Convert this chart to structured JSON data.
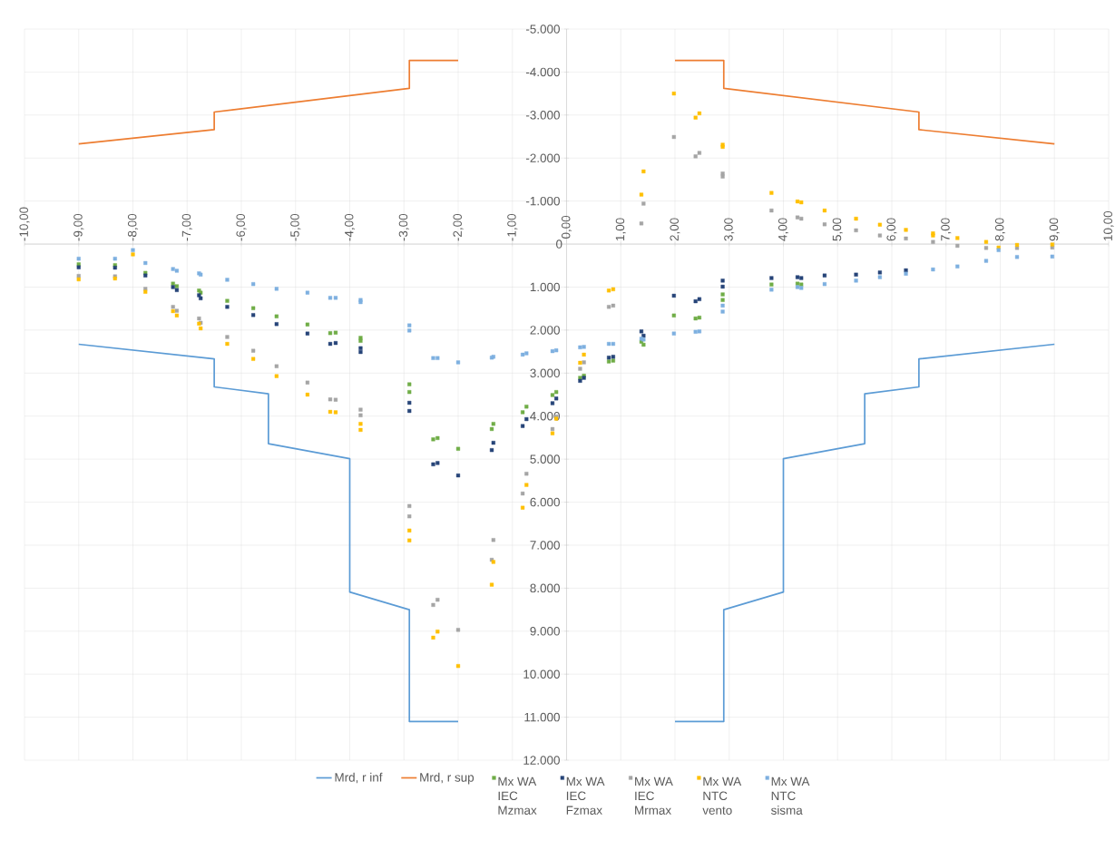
{
  "chart_data": {
    "type": "scatter",
    "marker": "square",
    "grid": true,
    "legend": "bottom",
    "xlim": [
      -10,
      10
    ],
    "ylim": [
      12000,
      -5000
    ],
    "xticks": [
      {
        "value": -10,
        "label": "-10,00"
      },
      {
        "value": -9,
        "label": "-9,00"
      },
      {
        "value": -8,
        "label": "-8,00"
      },
      {
        "value": -7,
        "label": "-7,00"
      },
      {
        "value": -6,
        "label": "-6,00"
      },
      {
        "value": -5,
        "label": "-5,00"
      },
      {
        "value": -4,
        "label": "-4,00"
      },
      {
        "value": -3,
        "label": "-3,00"
      },
      {
        "value": -2,
        "label": "-2,00"
      },
      {
        "value": -1,
        "label": "-1,00"
      },
      {
        "value": 0,
        "label": "0,00"
      },
      {
        "value": 1,
        "label": "1,00"
      },
      {
        "value": 2,
        "label": "2,00"
      },
      {
        "value": 3,
        "label": "3,00"
      },
      {
        "value": 4,
        "label": "4,00"
      },
      {
        "value": 5,
        "label": "5,00"
      },
      {
        "value": 6,
        "label": "6,00"
      },
      {
        "value": 7,
        "label": "7,00"
      },
      {
        "value": 8,
        "label": "8,00"
      },
      {
        "value": 9,
        "label": "9,00"
      },
      {
        "value": 10,
        "label": "10,00"
      }
    ],
    "yticks": [
      {
        "value": -5000,
        "label": "-5.000"
      },
      {
        "value": -4000,
        "label": "-4.000"
      },
      {
        "value": -3000,
        "label": "-3.000"
      },
      {
        "value": -2000,
        "label": "-2.000"
      },
      {
        "value": -1000,
        "label": "-1.000"
      },
      0,
      {
        "value": 1000,
        "label": "1.000"
      },
      {
        "value": 2000,
        "label": "2.000"
      },
      {
        "value": 3000,
        "label": "3.000"
      },
      {
        "value": 4000,
        "label": "4.000"
      },
      {
        "value": 5000,
        "label": "5.000"
      },
      {
        "value": 6000,
        "label": "6.000"
      },
      {
        "value": 7000,
        "label": "7.000"
      },
      {
        "value": 8000,
        "label": "8.000"
      },
      {
        "value": 9000,
        "label": "9.000"
      },
      {
        "value": 10000,
        "label": "10.000"
      },
      {
        "value": 11000,
        "label": "11.000"
      },
      {
        "value": 12000,
        "label": "12.000"
      }
    ],
    "x": [
      -9,
      -8.33,
      -8,
      -7.77,
      -7.26,
      -7.19,
      -6.78,
      -6.75,
      -6.26,
      -5.78,
      -5.35,
      -4.78,
      -4.36,
      -4.26,
      -3.8,
      -3.8,
      -2.9,
      -2.9,
      -2.46,
      -2.38,
      -2,
      -1.38,
      -1.35,
      -0.81,
      -0.74,
      -0.26,
      -0.19,
      0.25,
      0.32,
      0.78,
      0.86,
      1.38,
      1.42,
      1.98,
      2.38,
      2.45,
      2.88,
      2.88,
      3.78,
      4.26,
      4.33,
      4.76,
      5.34,
      5.78,
      6.26,
      6.76,
      6.76,
      7.21,
      7.74,
      7.97,
      8.31,
      8.96
    ],
    "series": [
      {
        "name": "Mrd, r inf",
        "type": "line",
        "marker": "none",
        "color": "#5b9bd5",
        "x": [
          -9,
          -6.5,
          -6.5,
          -5.5,
          -5.5,
          -4,
          -4,
          -2.9,
          -2.9,
          -2,
          0,
          2,
          2.9,
          2.9,
          4,
          4,
          5.5,
          5.5,
          6.5,
          6.5,
          9
        ],
        "values": [
          2330,
          2670,
          3320,
          3480,
          4640,
          4990,
          8090,
          8500,
          11100,
          11100,
          null,
          11100,
          11100,
          8500,
          8090,
          4990,
          4640,
          3480,
          3320,
          2670,
          2330
        ]
      },
      {
        "name": "Mrd, r sup",
        "type": "line",
        "marker": "none",
        "color": "#ed7d31",
        "x": [
          -9,
          -6.5,
          -6.5,
          -2.9,
          -2.9,
          -2,
          0,
          2,
          2.9,
          2.9,
          6.5,
          6.5,
          9
        ],
        "values": [
          -2330,
          -2660,
          -3070,
          -3620,
          -4270,
          -4270,
          null,
          -4270,
          -4270,
          -3620,
          -3070,
          -2660,
          -2330
        ]
      },
      {
        "name": "Mx WA IEC Mzmax",
        "color": "#70ad47",
        "values": [
          470,
          490,
          null,
          670,
          920,
          980,
          1080,
          1130,
          1320,
          1490,
          1680,
          1870,
          2070,
          2060,
          2180,
          2250,
          3260,
          3440,
          4540,
          4510,
          4760,
          4300,
          4180,
          3910,
          3780,
          3510,
          3440,
          3110,
          3060,
          2730,
          2710,
          2270,
          2340,
          1660,
          1730,
          1710,
          1170,
          1300,
          940,
          920,
          940,
          null,
          null,
          null,
          null,
          null,
          null,
          null,
          null,
          null,
          null,
          null
        ]
      },
      {
        "name": "Mx WA IEC Fzmax",
        "color": "#264478",
        "values": [
          540,
          550,
          null,
          730,
          1000,
          1070,
          1190,
          1260,
          1460,
          1650,
          1860,
          2080,
          2320,
          2300,
          2420,
          2510,
          3690,
          3880,
          5120,
          5090,
          5380,
          4790,
          4620,
          4230,
          4070,
          3700,
          3590,
          3180,
          3110,
          2640,
          2620,
          2030,
          2130,
          1200,
          1330,
          1280,
          850,
          990,
          790,
          770,
          790,
          730,
          710,
          660,
          610,
          null,
          null,
          null,
          null,
          null,
          null,
          null
        ]
      },
      {
        "name": "Mx WA IEC Mrmax",
        "color": "#a5a5a5",
        "values": [
          740,
          750,
          null,
          1040,
          1460,
          1550,
          1730,
          1830,
          2160,
          2480,
          2840,
          3220,
          3610,
          3620,
          3850,
          3980,
          6090,
          6330,
          8390,
          8270,
          8970,
          7340,
          6880,
          5800,
          5340,
          4300,
          4010,
          2900,
          2750,
          1460,
          1430,
          -480,
          -940,
          -2490,
          -2040,
          -2120,
          -1640,
          -1570,
          -780,
          -620,
          -590,
          -460,
          -320,
          -200,
          -130,
          -50,
          null,
          40,
          90,
          null,
          90,
          80
        ]
      },
      {
        "name": "Mx WA NTC vento",
        "color": "#ffc000",
        "values": [
          820,
          800,
          240,
          1110,
          1560,
          1660,
          1850,
          1960,
          2320,
          2670,
          3070,
          3500,
          3900,
          3910,
          4180,
          4320,
          6660,
          6890,
          9150,
          9010,
          9810,
          7920,
          7390,
          6130,
          5600,
          4400,
          4060,
          2760,
          2570,
          1080,
          1050,
          -1150,
          -1690,
          -3500,
          -2940,
          -3040,
          -2310,
          -2260,
          -1190,
          -990,
          -970,
          -780,
          -590,
          -450,
          -330,
          -250,
          -200,
          -140,
          -50,
          80,
          20,
          10
        ]
      },
      {
        "name": "Mx WA NTC sisma",
        "color": "#7eb0e0",
        "values": [
          340,
          340,
          140,
          440,
          580,
          620,
          680,
          710,
          830,
          930,
          1040,
          1130,
          1250,
          1250,
          1300,
          1350,
          1890,
          2010,
          2650,
          2650,
          2750,
          2640,
          2620,
          2570,
          2540,
          2490,
          2470,
          2400,
          2390,
          2320,
          2320,
          2200,
          2220,
          2080,
          2040,
          2030,
          1430,
          1570,
          1060,
          1000,
          1020,
          930,
          850,
          770,
          690,
          590,
          null,
          520,
          390,
          140,
          300,
          290
        ]
      }
    ]
  }
}
